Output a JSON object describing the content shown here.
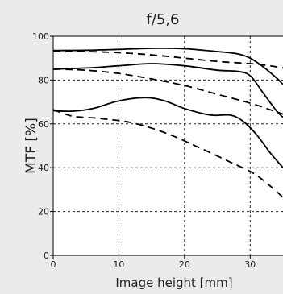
{
  "chart_data": {
    "type": "line",
    "title": "f/5,6",
    "xlabel": "Image height [mm]",
    "ylabel": "MTF [%]",
    "xlim": [
      0,
      35
    ],
    "ylim": [
      0,
      100
    ],
    "x_ticks": [
      0,
      10,
      20,
      30
    ],
    "y_ticks": [
      0,
      20,
      40,
      60,
      80,
      100
    ],
    "grid": true,
    "line_color": "#000000",
    "series": [
      {
        "style": "solid",
        "x": [
          0,
          5,
          10,
          15,
          20,
          25,
          28,
          30,
          32,
          34,
          35
        ],
        "y": [
          93.5,
          93.6,
          94.0,
          94.5,
          94.3,
          93.0,
          92.0,
          90.0,
          86.0,
          81.0,
          78.0
        ]
      },
      {
        "style": "dashed",
        "x": [
          0,
          5,
          10,
          15,
          20,
          25,
          30,
          33,
          35
        ],
        "y": [
          93.0,
          93.0,
          92.5,
          91.5,
          90.0,
          88.5,
          87.5,
          86.5,
          85.5
        ]
      },
      {
        "style": "solid",
        "x": [
          0,
          5,
          10,
          15,
          20,
          25,
          28,
          30,
          32,
          34,
          35
        ],
        "y": [
          85.0,
          85.5,
          86.5,
          87.5,
          86.5,
          84.5,
          84.0,
          82.0,
          74.0,
          66.0,
          63.0
        ]
      },
      {
        "style": "dashed",
        "x": [
          0,
          5,
          10,
          15,
          20,
          25,
          30,
          33,
          35
        ],
        "y": [
          85.0,
          84.5,
          83.0,
          80.5,
          77.5,
          73.5,
          69.5,
          66.5,
          64.5
        ]
      },
      {
        "style": "solid",
        "x": [
          0,
          3,
          6,
          10,
          14,
          17,
          20,
          24,
          27,
          29,
          31,
          33,
          35
        ],
        "y": [
          66.0,
          65.8,
          67.0,
          70.5,
          72.0,
          70.5,
          67.0,
          64.0,
          64.0,
          61.0,
          55.0,
          47.0,
          40.0
        ]
      },
      {
        "style": "dashed",
        "x": [
          0,
          3,
          7,
          12,
          17,
          22,
          27,
          31,
          35
        ],
        "y": [
          66.5,
          63.5,
          62.5,
          60.5,
          56.0,
          49.5,
          42.5,
          36.5,
          26.5
        ]
      }
    ]
  }
}
